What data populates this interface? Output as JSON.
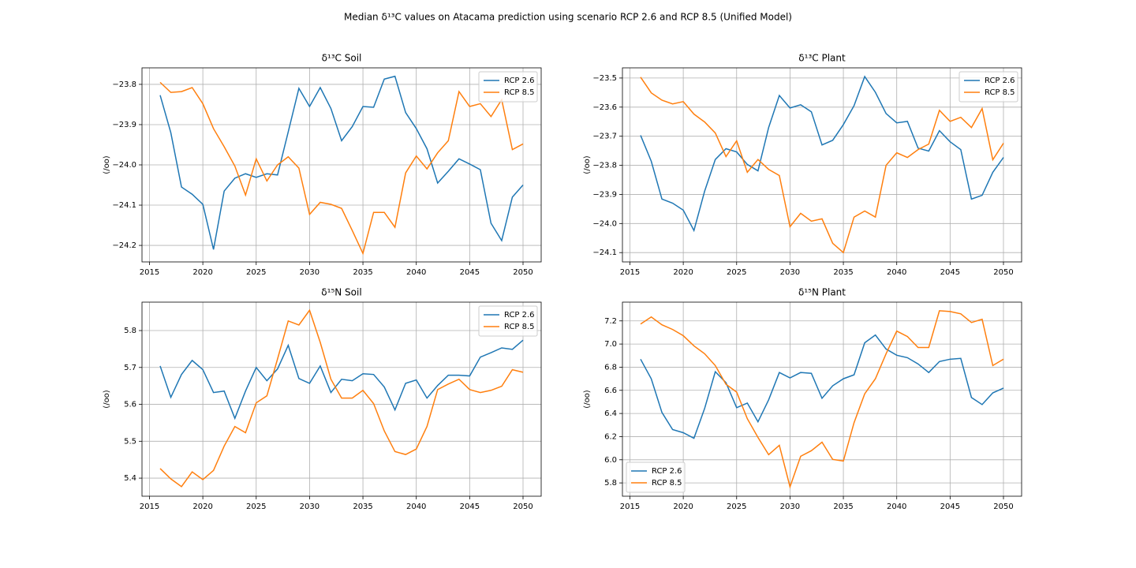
{
  "title": "Median δ¹³C values on Atacama prediction using scenario RCP 2.6 and RCP 8.5 (Unified Model)",
  "chart_data": [
    {
      "type": "line",
      "title": "δ¹³C Soil",
      "ylabel": "(/oo)",
      "x": [
        2016,
        2017,
        2018,
        2019,
        2020,
        2021,
        2022,
        2023,
        2024,
        2025,
        2026,
        2027,
        2028,
        2029,
        2030,
        2031,
        2032,
        2033,
        2034,
        2035,
        2036,
        2037,
        2038,
        2039,
        2040,
        2041,
        2042,
        2043,
        2044,
        2045,
        2046,
        2047,
        2048,
        2049,
        2050
      ],
      "xlim": [
        2014.3,
        2051.7
      ],
      "xticks": [
        2015,
        2020,
        2025,
        2030,
        2035,
        2040,
        2045,
        2050
      ],
      "ylim": [
        -24.241,
        -23.759
      ],
      "yticks": [
        {
          "value": -24.2,
          "label": "−24.2"
        },
        {
          "value": -24.1,
          "label": "−24.1"
        },
        {
          "value": -24.0,
          "label": "−24.0"
        },
        {
          "value": -23.9,
          "label": "−23.9"
        },
        {
          "value": -23.8,
          "label": "−23.8"
        }
      ],
      "grid": true,
      "legend_loc": "upper-right",
      "series": [
        {
          "name": "RCP 2.6",
          "color": "#1f77b4",
          "values": [
            -23.827,
            -23.92,
            -24.055,
            -24.073,
            -24.098,
            -24.21,
            -24.065,
            -24.033,
            -24.022,
            -24.031,
            -24.022,
            -24.025,
            -23.918,
            -23.81,
            -23.855,
            -23.808,
            -23.86,
            -23.94,
            -23.905,
            -23.855,
            -23.857,
            -23.787,
            -23.78,
            -23.87,
            -23.91,
            -23.96,
            -24.045,
            -24.016,
            -23.985,
            -23.998,
            -24.012,
            -24.145,
            -24.188,
            -24.08,
            -24.05
          ]
        },
        {
          "name": "RCP 8.5",
          "color": "#ff7f0e",
          "values": [
            -23.795,
            -23.82,
            -23.818,
            -23.808,
            -23.848,
            -23.91,
            -23.955,
            -24.003,
            -24.075,
            -23.985,
            -24.04,
            -24.0,
            -23.98,
            -24.008,
            -24.123,
            -24.093,
            -24.098,
            -24.108,
            -24.163,
            -24.22,
            -24.118,
            -24.118,
            -24.155,
            -24.02,
            -23.978,
            -24.01,
            -23.97,
            -23.94,
            -23.818,
            -23.855,
            -23.848,
            -23.88,
            -23.838,
            -23.962,
            -23.948
          ]
        }
      ]
    },
    {
      "type": "line",
      "title": "δ¹³C Plant",
      "ylabel": "(/oo)",
      "x": [
        2016,
        2017,
        2018,
        2019,
        2020,
        2021,
        2022,
        2023,
        2024,
        2025,
        2026,
        2027,
        2028,
        2029,
        2030,
        2031,
        2032,
        2033,
        2034,
        2035,
        2036,
        2037,
        2038,
        2039,
        2040,
        2041,
        2042,
        2043,
        2044,
        2045,
        2046,
        2047,
        2048,
        2049,
        2050
      ],
      "xlim": [
        2014.3,
        2051.7
      ],
      "xticks": [
        2015,
        2020,
        2025,
        2030,
        2035,
        2040,
        2045,
        2050
      ],
      "ylim": [
        -24.132,
        -23.465
      ],
      "yticks": [
        {
          "value": -24.1,
          "label": "−24.1"
        },
        {
          "value": -24.0,
          "label": "−24.0"
        },
        {
          "value": -23.9,
          "label": "−23.9"
        },
        {
          "value": -23.8,
          "label": "−23.8"
        },
        {
          "value": -23.7,
          "label": "−23.7"
        },
        {
          "value": -23.6,
          "label": "−23.6"
        },
        {
          "value": -23.5,
          "label": "−23.5"
        }
      ],
      "grid": true,
      "legend_loc": "upper-right",
      "series": [
        {
          "name": "RCP 2.6",
          "color": "#1f77b4",
          "values": [
            -23.697,
            -23.786,
            -23.916,
            -23.93,
            -23.954,
            -24.024,
            -23.889,
            -23.78,
            -23.743,
            -23.754,
            -23.797,
            -23.819,
            -23.67,
            -23.56,
            -23.603,
            -23.592,
            -23.616,
            -23.73,
            -23.714,
            -23.66,
            -23.595,
            -23.495,
            -23.549,
            -23.622,
            -23.654,
            -23.649,
            -23.741,
            -23.751,
            -23.681,
            -23.719,
            -23.746,
            -23.916,
            -23.903,
            -23.824,
            -23.773
          ]
        },
        {
          "name": "RCP 8.5",
          "color": "#ff7f0e",
          "values": [
            -23.497,
            -23.551,
            -23.576,
            -23.589,
            -23.581,
            -23.624,
            -23.651,
            -23.689,
            -23.77,
            -23.716,
            -23.824,
            -23.78,
            -23.814,
            -23.835,
            -24.011,
            -23.965,
            -23.992,
            -23.984,
            -24.068,
            -24.1,
            -23.978,
            -23.957,
            -23.978,
            -23.8,
            -23.757,
            -23.773,
            -23.746,
            -23.727,
            -23.611,
            -23.649,
            -23.635,
            -23.67,
            -23.605,
            -23.781,
            -23.724
          ]
        }
      ]
    },
    {
      "type": "line",
      "title": "δ¹⁵N Soil",
      "ylabel": "(/oo)",
      "x": [
        2016,
        2017,
        2018,
        2019,
        2020,
        2021,
        2022,
        2023,
        2024,
        2025,
        2026,
        2027,
        2028,
        2029,
        2030,
        2031,
        2032,
        2033,
        2034,
        2035,
        2036,
        2037,
        2038,
        2039,
        2040,
        2041,
        2042,
        2043,
        2044,
        2045,
        2046,
        2047,
        2048,
        2049,
        2050
      ],
      "xlim": [
        2014.3,
        2051.7
      ],
      "xticks": [
        2015,
        2020,
        2025,
        2030,
        2035,
        2040,
        2045,
        2050
      ],
      "ylim": [
        5.351,
        5.877
      ],
      "yticks": [
        5.4,
        5.5,
        5.6,
        5.7,
        5.8
      ],
      "grid": true,
      "legend_loc": "upper-right",
      "series": [
        {
          "name": "RCP 2.6",
          "color": "#1f77b4",
          "values": [
            5.704,
            5.619,
            5.681,
            5.719,
            5.694,
            5.632,
            5.636,
            5.562,
            5.636,
            5.7,
            5.664,
            5.696,
            5.76,
            5.67,
            5.657,
            5.704,
            5.632,
            5.668,
            5.664,
            5.683,
            5.681,
            5.647,
            5.585,
            5.657,
            5.666,
            5.617,
            5.651,
            5.679,
            5.679,
            5.677,
            5.728,
            5.74,
            5.753,
            5.749,
            5.774
          ]
        },
        {
          "name": "RCP 8.5",
          "color": "#ff7f0e",
          "values": [
            5.426,
            5.398,
            5.377,
            5.417,
            5.396,
            5.421,
            5.487,
            5.54,
            5.523,
            5.604,
            5.623,
            5.723,
            5.826,
            5.815,
            5.855,
            5.768,
            5.668,
            5.617,
            5.617,
            5.638,
            5.602,
            5.528,
            5.472,
            5.464,
            5.479,
            5.54,
            5.64,
            5.655,
            5.668,
            5.64,
            5.632,
            5.638,
            5.649,
            5.694,
            5.687
          ]
        }
      ]
    },
    {
      "type": "line",
      "title": "δ¹⁵N Plant",
      "ylabel": "(/oo)",
      "x": [
        2016,
        2017,
        2018,
        2019,
        2020,
        2021,
        2022,
        2023,
        2024,
        2025,
        2026,
        2027,
        2028,
        2029,
        2030,
        2031,
        2032,
        2033,
        2034,
        2035,
        2036,
        2037,
        2038,
        2039,
        2040,
        2041,
        2042,
        2043,
        2044,
        2045,
        2046,
        2047,
        2048,
        2049,
        2050
      ],
      "xlim": [
        2014.3,
        2051.7
      ],
      "xticks": [
        2015,
        2020,
        2025,
        2030,
        2035,
        2040,
        2045,
        2050
      ],
      "ylim": [
        5.685,
        7.362
      ],
      "yticks": [
        5.8,
        {
          "value": 6.0,
          "label": "6.0"
        },
        6.2,
        6.4,
        6.6,
        6.8,
        {
          "value": 7.0,
          "label": "7.0"
        },
        7.2
      ],
      "grid": true,
      "legend_loc": "lower-left",
      "series": [
        {
          "name": "RCP 2.6",
          "color": "#1f77b4",
          "values": [
            6.869,
            6.7,
            6.409,
            6.261,
            6.234,
            6.186,
            6.443,
            6.761,
            6.666,
            6.45,
            6.49,
            6.328,
            6.518,
            6.754,
            6.707,
            6.754,
            6.747,
            6.531,
            6.639,
            6.7,
            6.734,
            7.011,
            7.078,
            6.957,
            6.903,
            6.882,
            6.828,
            6.754,
            6.849,
            6.869,
            6.876,
            6.538,
            6.477,
            6.578,
            6.619
          ]
        },
        {
          "name": "RCP 8.5",
          "color": "#ff7f0e",
          "values": [
            7.173,
            7.234,
            7.166,
            7.126,
            7.072,
            6.984,
            6.916,
            6.814,
            6.652,
            6.585,
            6.355,
            6.193,
            6.044,
            6.125,
            5.766,
            6.03,
            6.078,
            6.152,
            6.003,
            5.989,
            6.32,
            6.57,
            6.7,
            6.916,
            7.112,
            7.065,
            6.97,
            6.97,
            7.288,
            7.281,
            7.261,
            7.186,
            7.214,
            6.814,
            6.869
          ]
        }
      ]
    }
  ]
}
